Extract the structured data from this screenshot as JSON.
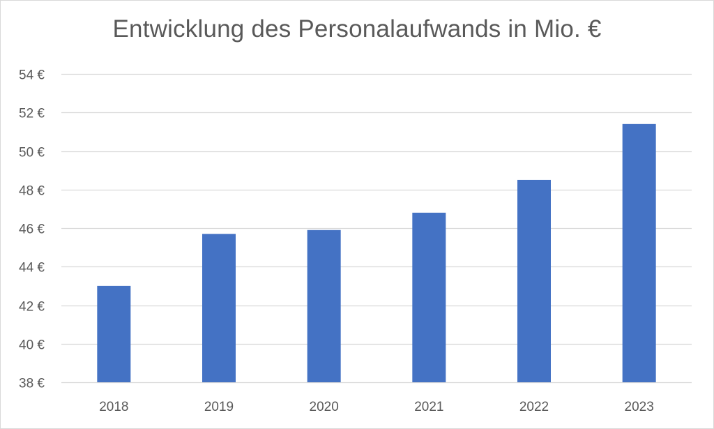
{
  "chart_data": {
    "type": "bar",
    "title": "Entwicklung des Personalaufwands in Mio. €",
    "categories": [
      "2018",
      "2019",
      "2020",
      "2021",
      "2022",
      "2023"
    ],
    "values": [
      43.0,
      45.7,
      45.9,
      46.8,
      48.5,
      51.4
    ],
    "ylim": [
      38,
      54
    ],
    "yticks": [
      38,
      40,
      42,
      44,
      46,
      48,
      50,
      52,
      54
    ],
    "ytick_suffix": " €",
    "xlabel": "",
    "ylabel": "",
    "grid": true,
    "legend": "none",
    "bar_color": "#4472c4",
    "grid_color": "#d9d9d9"
  }
}
